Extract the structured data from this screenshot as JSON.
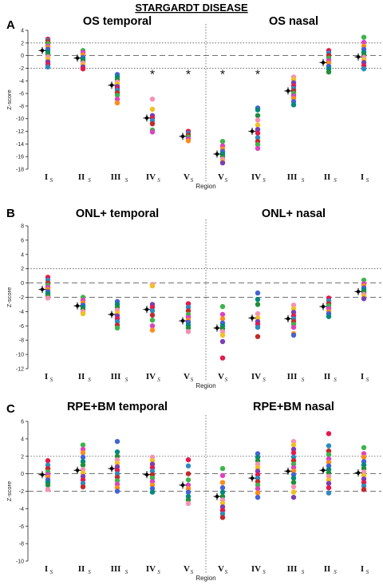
{
  "figure": {
    "title": "STARGARDT DISEASE"
  },
  "chart_data": [
    {
      "type": "scatter",
      "panel_letter": "A",
      "left_title": "OS temporal",
      "right_title": "OS nasal",
      "ylabel": "Z-score",
      "xlabel": "Region",
      "ylim": [
        -18,
        4
      ],
      "yticks": [
        -18,
        -16,
        -14,
        -12,
        -10,
        -8,
        -6,
        -4,
        -2,
        0,
        2,
        4
      ],
      "categories": [
        "I",
        "II",
        "III",
        "IV",
        "V",
        "V",
        "IV",
        "III",
        "II",
        "I"
      ],
      "category_subscript": "S",
      "reference_lines": {
        "dashed": [
          0
        ],
        "dotted": [
          2,
          -2
        ]
      },
      "asterisks": [
        false,
        false,
        false,
        true,
        true,
        true,
        true,
        false,
        false,
        false
      ],
      "group_means": [
        0.8,
        -0.4,
        -4.7,
        -9.9,
        -12.8,
        -15.6,
        -12.0,
        -5.6,
        -1.1,
        -0.2
      ],
      "points": [
        [
          2.6,
          2.4,
          2.2,
          1.9,
          1.5,
          1.3,
          1.0,
          0.6,
          0.2,
          -0.2,
          -0.6,
          -1.0,
          -1.4,
          -1.8
        ],
        [
          0.8,
          0.5,
          0.1,
          -0.3,
          -0.6,
          -0.9,
          -1.2,
          -1.5,
          -1.8,
          -2.1
        ],
        [
          -3.0,
          -3.4,
          -3.8,
          -4.2,
          -4.5,
          -4.9,
          -5.2,
          -5.5,
          -5.9,
          -6.3,
          -6.9,
          -7.5
        ],
        [
          -6.9,
          -8.5,
          -9.5,
          -9.9,
          -10.3,
          -10.8,
          -11.8,
          -12.1
        ],
        [
          -12.0,
          -12.3,
          -12.6,
          -12.9,
          -13.2,
          -13.5
        ],
        [
          -13.6,
          -14.3,
          -14.8,
          -15.2,
          -15.6,
          -16.0,
          -16.4,
          -16.8,
          -17.0
        ],
        [
          -8.3,
          -8.6,
          -9.5,
          -10.2,
          -11.0,
          -11.7,
          -12.3,
          -13.0,
          -13.6,
          -14.1,
          -14.7
        ],
        [
          -3.4,
          -3.8,
          -4.3,
          -4.8,
          -5.2,
          -5.6,
          -6.0,
          -6.4,
          -6.8,
          -7.3,
          -7.8
        ],
        [
          0.8,
          0.4,
          0.0,
          -0.4,
          -0.8,
          -1.2,
          -1.7,
          -2.1,
          -2.6
        ],
        [
          2.9,
          2.1,
          1.5,
          1.0,
          0.5,
          0.1,
          -0.3,
          -0.7,
          -1.1,
          -1.6,
          -2.1
        ]
      ]
    },
    {
      "type": "scatter",
      "panel_letter": "B",
      "left_title": "ONL+ temporal",
      "right_title": "ONL+ nasal",
      "ylabel": "Z-score",
      "xlabel": "Region",
      "ylim": [
        -12,
        8
      ],
      "yticks": [
        -12,
        -10,
        -8,
        -6,
        -4,
        -2,
        0,
        2,
        4,
        6,
        8
      ],
      "categories": [
        "I",
        "II",
        "III",
        "IV",
        "V",
        "V",
        "IV",
        "III",
        "II",
        "I"
      ],
      "category_subscript": "S",
      "reference_lines": {
        "dashed": [
          0,
          -2
        ],
        "dotted": [
          2
        ]
      },
      "asterisks": [
        false,
        false,
        false,
        false,
        false,
        false,
        false,
        false,
        false,
        false
      ],
      "group_means": [
        -0.9,
        -3.2,
        -4.4,
        -3.7,
        -5.3,
        -6.3,
        -4.9,
        -5.0,
        -3.3,
        -1.2
      ],
      "points": [
        [
          0.8,
          0.4,
          0.0,
          -0.3,
          -0.6,
          -0.9,
          -1.2,
          -1.5,
          -1.8,
          -2.1
        ],
        [
          -2.0,
          -2.4,
          -2.8,
          -3.1,
          -3.4,
          -3.7,
          -4.0,
          -4.3
        ],
        [
          -2.6,
          -3.0,
          -3.4,
          -3.8,
          -4.2,
          -4.6,
          -5.0,
          -5.4,
          -5.9,
          -6.3
        ],
        [
          -0.2,
          -0.4,
          -3.0,
          -3.4,
          -3.9,
          -4.5,
          -5.2,
          -6.0,
          -6.6
        ],
        [
          -2.9,
          -3.4,
          -3.9,
          -4.4,
          -4.8,
          -5.2,
          -5.5,
          -5.9,
          -6.3,
          -6.8
        ],
        [
          -3.3,
          -4.4,
          -5.0,
          -5.6,
          -6.0,
          -6.4,
          -6.8,
          -7.3,
          -8.2,
          -10.5
        ],
        [
          -1.4,
          -2.3,
          -3.0,
          -4.3,
          -4.9,
          -5.4,
          -5.8,
          -6.2,
          -7.5
        ],
        [
          -3.1,
          -3.6,
          -4.1,
          -4.6,
          -5.0,
          -5.4,
          -5.8,
          -6.2,
          -7.1,
          -7.3
        ],
        [
          -2.1,
          -2.5,
          -2.9,
          -3.2,
          -3.6,
          -4.0,
          -4.3,
          -4.7
        ],
        [
          0.4,
          -0.1,
          -0.4,
          -0.7,
          -1.0,
          -1.3,
          -1.6,
          -1.9,
          -2.2
        ]
      ]
    },
    {
      "type": "scatter",
      "panel_letter": "C",
      "left_title": "RPE+BM temporal",
      "right_title": "RPE+BM nasal",
      "ylabel": "Z-score",
      "xlabel": "Region",
      "ylim": [
        -10,
        6
      ],
      "yticks": [
        -10,
        -8,
        -6,
        -4,
        -2,
        0,
        2,
        4,
        6
      ],
      "categories": [
        "I",
        "II",
        "III",
        "IV",
        "V",
        "V",
        "IV",
        "III",
        "II",
        "I"
      ],
      "category_subscript": "S",
      "reference_lines": {
        "dashed": [
          0,
          -2
        ],
        "dotted": [
          2
        ]
      },
      "asterisks": [
        false,
        false,
        false,
        false,
        false,
        false,
        false,
        false,
        false,
        false
      ],
      "group_means": [
        -0.1,
        0.4,
        0.6,
        -0.1,
        -1.3,
        -2.6,
        -0.5,
        0.3,
        0.4,
        0.1
      ],
      "points": [
        [
          1.5,
          1.0,
          0.6,
          0.2,
          -0.1,
          -0.4,
          -0.7,
          -1.0,
          -1.3,
          -1.8
        ],
        [
          3.3,
          2.8,
          2.4,
          1.9,
          1.4,
          1.0,
          0.5,
          0.1,
          -0.3,
          -0.7,
          -1.1,
          -1.5
        ],
        [
          3.7,
          2.5,
          2.0,
          1.6,
          1.2,
          0.8,
          0.4,
          0.0,
          -0.4,
          -0.8,
          -1.2,
          -1.6,
          -2.0
        ],
        [
          1.9,
          1.5,
          1.1,
          0.7,
          0.3,
          -0.1,
          -0.5,
          -0.9,
          -1.3,
          -1.7,
          -2.1
        ],
        [
          1.6,
          0.9,
          0.0,
          -0.7,
          -1.3,
          -1.7,
          -2.1,
          -2.6,
          -3.0,
          -3.4
        ],
        [
          0.6,
          -0.2,
          -1.0,
          -1.6,
          -2.1,
          -2.6,
          -3.0,
          -3.4,
          -3.8,
          -4.2,
          -4.6,
          -5.0
        ],
        [
          2.3,
          1.9,
          1.5,
          1.1,
          0.7,
          0.3,
          -0.1,
          -0.5,
          -0.9,
          -1.3,
          -1.7,
          -2.2,
          -2.7
        ],
        [
          3.7,
          3.3,
          2.8,
          2.4,
          1.9,
          1.5,
          1.1,
          0.7,
          0.3,
          -0.1,
          -0.5,
          -1.0,
          -1.5,
          -2.1,
          -2.7
        ],
        [
          4.6,
          3.2,
          2.6,
          2.2,
          1.7,
          1.3,
          0.9,
          0.5,
          0.1,
          -0.3,
          -0.7,
          -1.1,
          -1.6,
          -2.2
        ],
        [
          3.0,
          2.3,
          1.9,
          1.4,
          1.0,
          0.6,
          0.2,
          -0.2,
          -0.6,
          -1.0,
          -1.4,
          -1.8
        ]
      ]
    }
  ],
  "palette": [
    "#e6194b",
    "#ff8c1a",
    "#f0c020",
    "#3cb44b",
    "#1f8f3a",
    "#2e8bc0",
    "#4363d8",
    "#7a3fb5",
    "#e040c0",
    "#f78fb3",
    "#c62828",
    "#00897b"
  ]
}
